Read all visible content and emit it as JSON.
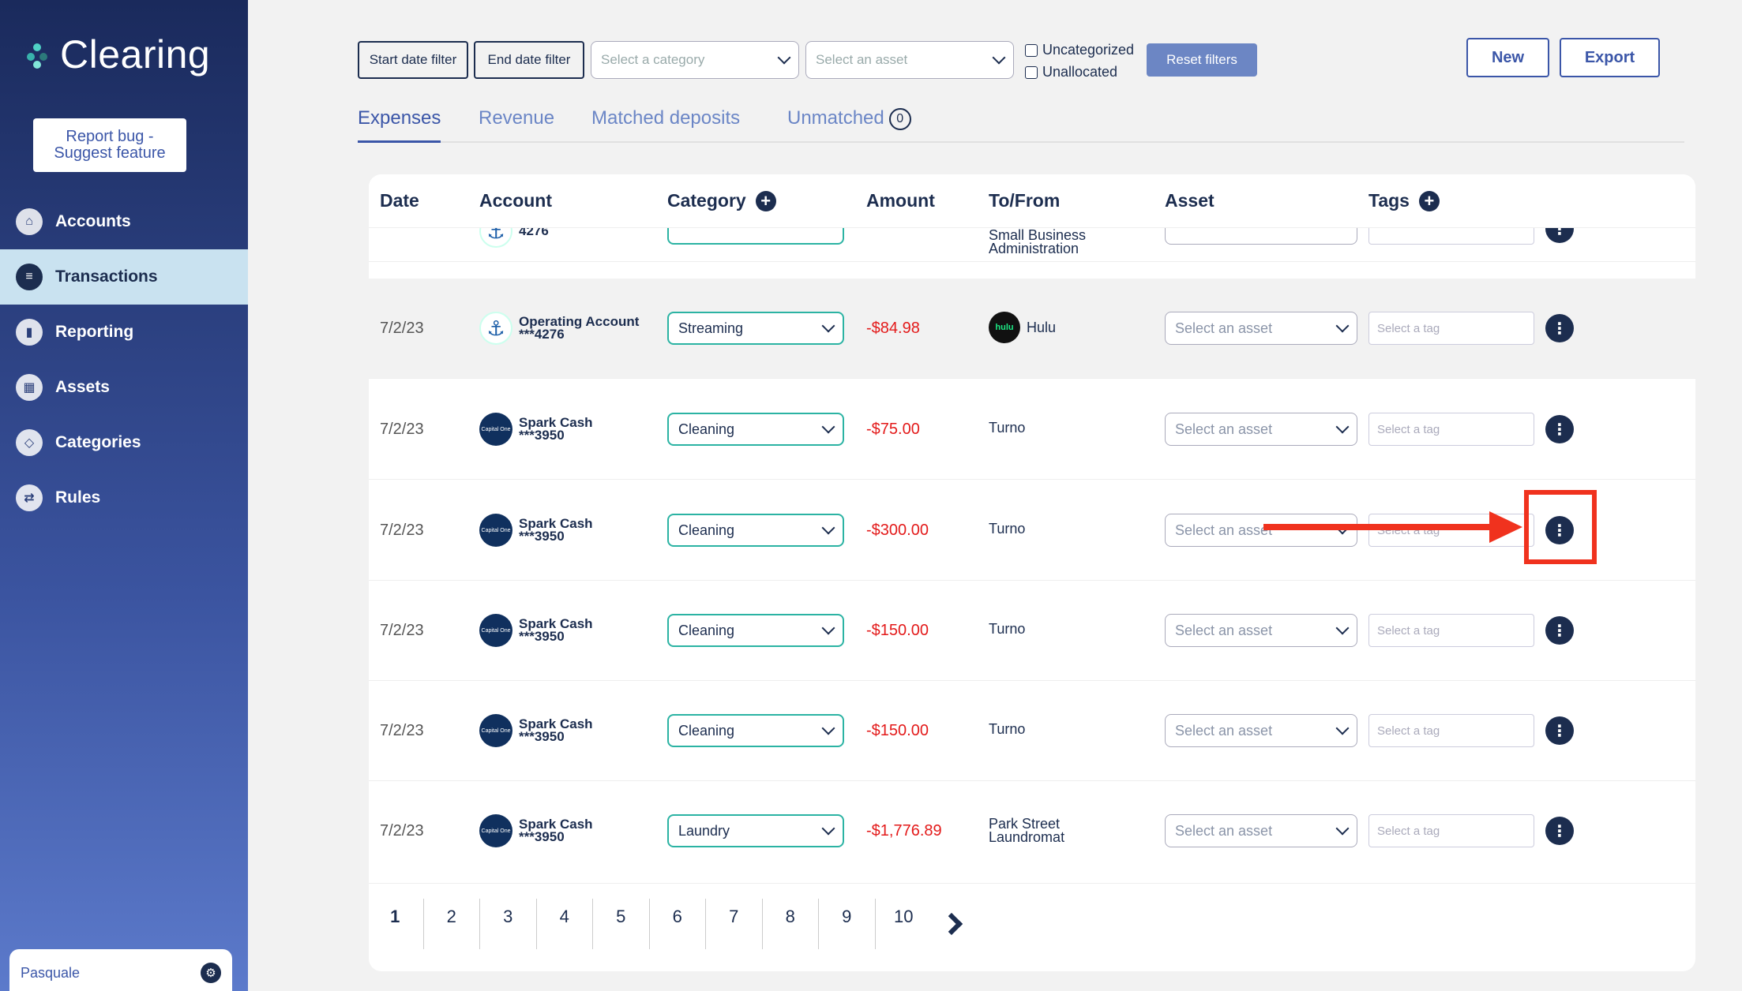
{
  "app": {
    "brand": "Clearing",
    "report_button": "Report bug - Suggest feature",
    "user": "Pasquale"
  },
  "nav": [
    {
      "label": "Accounts",
      "icon": "bank-icon",
      "active": false
    },
    {
      "label": "Transactions",
      "icon": "document-icon",
      "active": true
    },
    {
      "label": "Reporting",
      "icon": "chart-icon",
      "active": false
    },
    {
      "label": "Assets",
      "icon": "building-icon",
      "active": false
    },
    {
      "label": "Categories",
      "icon": "tag-icon",
      "active": false
    },
    {
      "label": "Rules",
      "icon": "rules-icon",
      "active": false
    }
  ],
  "filters": {
    "start_date": "Start date filter",
    "end_date": "End date filter",
    "category_placeholder": "Select a category",
    "asset_placeholder": "Select an asset",
    "uncategorized": "Uncategorized",
    "unallocated": "Unallocated",
    "reset": "Reset filters"
  },
  "actions": {
    "new": "New",
    "export": "Export"
  },
  "tabs": [
    {
      "label": "Expenses",
      "active": true
    },
    {
      "label": "Revenue",
      "active": false
    },
    {
      "label": "Matched deposits",
      "active": false
    },
    {
      "label": "Unmatched",
      "active": false,
      "count": "0"
    }
  ],
  "table": {
    "headers": {
      "date": "Date",
      "account": "Account",
      "category": "Category",
      "amount": "Amount",
      "tofrom": "To/From",
      "asset": "Asset",
      "tags": "Tags"
    },
    "partial_row": {
      "account_suffix": "4276",
      "tofrom": "Small Business Administration"
    },
    "rows": [
      {
        "date": "7/2/23",
        "account_name": "Operating Account",
        "account_num": "***4276",
        "category": "Streaming",
        "amount": "-$84.98",
        "tofrom": "Hulu",
        "merchant_logo": "hulu",
        "asset_placeholder": "Select an asset",
        "tag_placeholder": "Select a tag"
      },
      {
        "date": "7/2/23",
        "account_name": "Spark Cash",
        "account_num": "***3950",
        "category": "Cleaning",
        "amount": "-$75.00",
        "tofrom": "Turno",
        "asset_placeholder": "Select an asset",
        "tag_placeholder": "Select a tag"
      },
      {
        "date": "7/2/23",
        "account_name": "Spark Cash",
        "account_num": "***3950",
        "category": "Cleaning",
        "amount": "-$300.00",
        "tofrom": "Turno",
        "asset_placeholder": "Select an asset",
        "tag_placeholder": "Select a tag"
      },
      {
        "date": "7/2/23",
        "account_name": "Spark Cash",
        "account_num": "***3950",
        "category": "Cleaning",
        "amount": "-$150.00",
        "tofrom": "Turno",
        "asset_placeholder": "Select an asset",
        "tag_placeholder": "Select a tag"
      },
      {
        "date": "7/2/23",
        "account_name": "Spark Cash",
        "account_num": "***3950",
        "category": "Cleaning",
        "amount": "-$150.00",
        "tofrom": "Turno",
        "asset_placeholder": "Select an asset",
        "tag_placeholder": "Select a tag"
      },
      {
        "date": "7/2/23",
        "account_name": "Spark Cash",
        "account_num": "***3950",
        "category": "Laundry",
        "amount": "-$1,776.89",
        "tofrom": "Park Street Laundromat",
        "asset_placeholder": "Select an asset",
        "tag_placeholder": "Select a tag"
      }
    ]
  },
  "pagination": {
    "pages": [
      "1",
      "2",
      "3",
      "4",
      "5",
      "6",
      "7",
      "8",
      "9",
      "10"
    ],
    "current": "1"
  },
  "colors": {
    "accent": "#3b56a8",
    "negative": "#e31a1a",
    "category_border": "#2bb3a3",
    "annotation": "#f0321e"
  }
}
